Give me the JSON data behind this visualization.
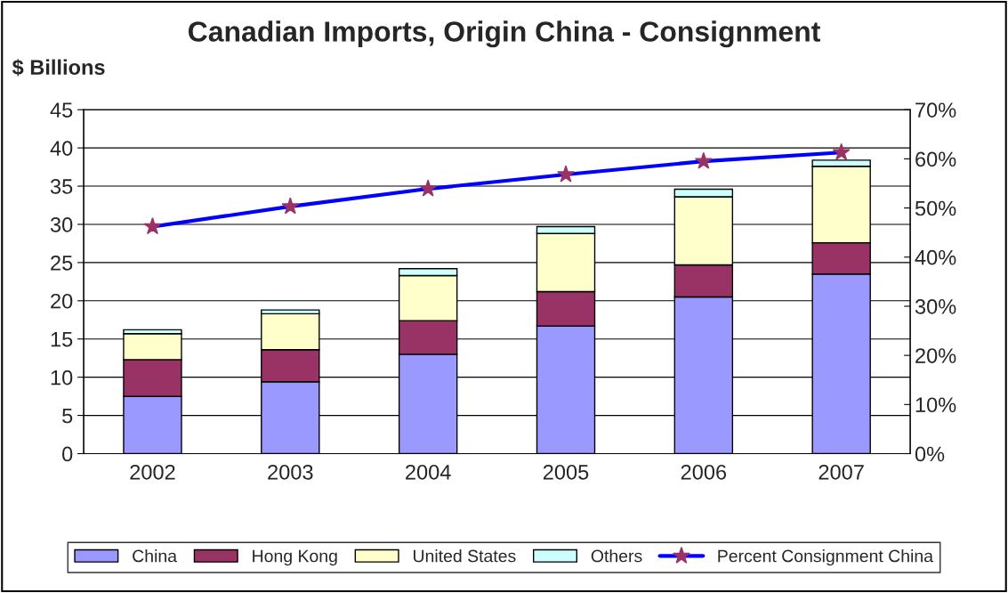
{
  "chart_data": {
    "type": "bar",
    "title": "Canadian Imports, Origin China - Consignment",
    "ylabel": "$ Billions",
    "categories": [
      "2002",
      "2003",
      "2004",
      "2005",
      "2006",
      "2007"
    ],
    "stacked": true,
    "series": [
      {
        "name": "China",
        "color": "#9999ff",
        "values": [
          7.5,
          9.4,
          13.0,
          16.7,
          20.5,
          23.5
        ]
      },
      {
        "name": "Hong Kong",
        "color": "#993366",
        "values": [
          4.8,
          4.2,
          4.4,
          4.5,
          4.2,
          4.1
        ]
      },
      {
        "name": "United States",
        "color": "#ffffcc",
        "values": [
          3.4,
          4.7,
          5.9,
          7.6,
          8.9,
          10.0
        ]
      },
      {
        "name": "Others",
        "color": "#ccffff",
        "values": [
          0.5,
          0.5,
          0.9,
          0.9,
          1.0,
          0.8
        ]
      },
      {
        "name": "Percent Consignment China",
        "type": "line",
        "axis": "y2",
        "color": "#0000ff",
        "marker": "star",
        "values": [
          46.2,
          50.3,
          53.9,
          56.8,
          59.5,
          61.3
        ]
      }
    ],
    "ylim": [
      0,
      45
    ],
    "yticks": [
      0,
      5,
      10,
      15,
      20,
      25,
      30,
      35,
      40,
      45
    ],
    "y2lim": [
      0,
      70
    ],
    "y2ticks": [
      {
        "value": 0,
        "label": "0%"
      },
      {
        "value": 10,
        "label": "10%"
      },
      {
        "value": 20,
        "label": "20%"
      },
      {
        "value": 30,
        "label": "30%"
      },
      {
        "value": 40,
        "label": "40%"
      },
      {
        "value": 50,
        "label": "50%"
      },
      {
        "value": 60,
        "label": "60%"
      },
      {
        "value": 70,
        "label": "70%"
      }
    ],
    "grid": "y",
    "legend": "bottom"
  }
}
